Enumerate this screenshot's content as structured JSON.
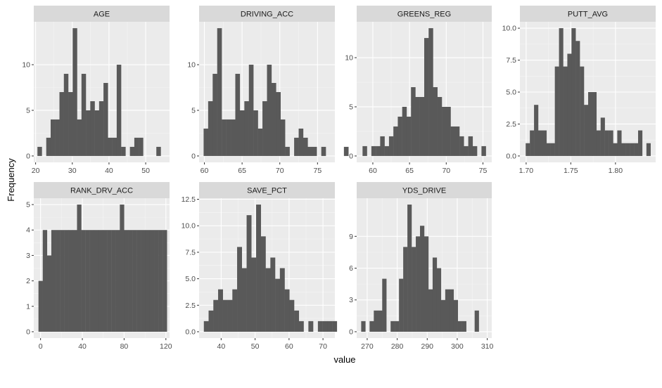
{
  "chart_data": {
    "type": "histogram",
    "xlabel": "value",
    "ylabel": "Frequency",
    "colors": {
      "bar": "#595959",
      "panel": "#ebebeb",
      "strip": "#d9d9d9",
      "grid_major": "#ffffff",
      "text": "#4d4d4d"
    },
    "facets": [
      {
        "name": "AGE",
        "xlim": [
          19.5,
          56.5
        ],
        "ylim": [
          -0.7,
          14.7
        ],
        "xticks": [
          20,
          30,
          40,
          50
        ],
        "xtick_labels": [
          "20",
          "30",
          "40",
          "50"
        ],
        "yticks": [
          0,
          5,
          10
        ],
        "ytick_labels": [
          "0",
          "5",
          "10"
        ],
        "bin_start": 20.5,
        "bin_width": 1.2,
        "counts": [
          1,
          0,
          2,
          4,
          4,
          7,
          9,
          7,
          14,
          4,
          9,
          5,
          6,
          5,
          6,
          8,
          2,
          2,
          10,
          1,
          0,
          1,
          2,
          2,
          0,
          0,
          0,
          1
        ]
      },
      {
        "name": "DRIVING_ACC",
        "xlim": [
          59.3,
          77.3
        ],
        "ylim": [
          -0.7,
          14.7
        ],
        "xticks": [
          60,
          65,
          70,
          75
        ],
        "xtick_labels": [
          "60",
          "65",
          "70",
          "75"
        ],
        "yticks": [
          0,
          5,
          10
        ],
        "ytick_labels": [
          "0",
          "5",
          "10"
        ],
        "bin_start": 59.9,
        "bin_width": 0.6,
        "counts": [
          3,
          6,
          9,
          14,
          4,
          4,
          4,
          9,
          5,
          6,
          10,
          5,
          3,
          6,
          10,
          8,
          7,
          4,
          1,
          0,
          2,
          3,
          2,
          1,
          1,
          0,
          1,
          0,
          0,
          0,
          0,
          1
        ]
      },
      {
        "name": "GREENS_REG",
        "xlim": [
          57.8,
          76.2
        ],
        "ylim": [
          -0.65,
          13.65
        ],
        "xticks": [
          60,
          65,
          70,
          75
        ],
        "xtick_labels": [
          "60",
          "65",
          "70",
          "75"
        ],
        "yticks": [
          0,
          5,
          10
        ],
        "ytick_labels": [
          "0",
          "5",
          "10"
        ],
        "bin_start": 58.6,
        "bin_width": 0.6,
        "counts": [
          1,
          0,
          1,
          1,
          2,
          1,
          2,
          3,
          4,
          5,
          4,
          7,
          6,
          6,
          12,
          13,
          7,
          6,
          5,
          5,
          3,
          3,
          2,
          1,
          2,
          1,
          0,
          1
        ]
      },
      {
        "name": "PUTT_AVG",
        "xlim": [
          1.693,
          1.845
        ],
        "ylim": [
          -0.5,
          10.5
        ],
        "xticks": [
          1.7,
          1.75,
          1.8
        ],
        "xtick_labels": [
          "1.70",
          "1.75",
          "1.80"
        ],
        "yticks": [
          0,
          2.5,
          5,
          7.5,
          10
        ],
        "ytick_labels": [
          "0.0",
          "2.5",
          "5.0",
          "7.5",
          "10.0"
        ],
        "bin_start": 1.6995,
        "bin_width": 0.00466,
        "counts": [
          1,
          2,
          4,
          2,
          2,
          1,
          1,
          7,
          10,
          7,
          8,
          10,
          9,
          7,
          4,
          5,
          5,
          2,
          3,
          2,
          2,
          1,
          2,
          1,
          1,
          1,
          1,
          2,
          0,
          1
        ]
      },
      {
        "name": "RANK_DRV_ACC",
        "xlim": [
          -6.5,
          123.5
        ],
        "ylim": [
          -0.25,
          5.25
        ],
        "xticks": [
          0,
          40,
          80,
          120
        ],
        "xtick_labels": [
          "0",
          "40",
          "80",
          "120"
        ],
        "yticks": [
          0,
          1,
          2,
          3,
          4,
          5
        ],
        "ytick_labels": [
          "0",
          "1",
          "2",
          "3",
          "4",
          "5"
        ],
        "bin_start": -2,
        "bin_width": 4.1,
        "counts": [
          2,
          4,
          3,
          4,
          4,
          4,
          4,
          4,
          4,
          5,
          4,
          4,
          4,
          4,
          4,
          4,
          4,
          4,
          4,
          5,
          4,
          4,
          4,
          4,
          4,
          4,
          4,
          4,
          4,
          4
        ]
      },
      {
        "name": "SAVE_PCT",
        "xlim": [
          33.5,
          73.5
        ],
        "ylim": [
          -0.6,
          12.6
        ],
        "xticks": [
          40,
          50,
          60,
          70
        ],
        "xtick_labels": [
          "40",
          "50",
          "60",
          "70"
        ],
        "yticks": [
          0,
          2.5,
          5,
          7.5,
          10,
          12.5
        ],
        "ytick_labels": [
          "0.0",
          "2.5",
          "5.0",
          "7.5",
          "10.0",
          "12.5"
        ],
        "bin_start": 34.9,
        "bin_width": 1.4,
        "counts": [
          1,
          2,
          3,
          4,
          3,
          3,
          4,
          8,
          6,
          11,
          7,
          12,
          9,
          6,
          7,
          5,
          6,
          4,
          3,
          2,
          1,
          0,
          1,
          0,
          1,
          1,
          1,
          1
        ]
      },
      {
        "name": "YDS_DRIVE",
        "xlim": [
          266.5,
          311.5
        ],
        "ylim": [
          -0.6,
          12.6
        ],
        "xticks": [
          270,
          280,
          290,
          300,
          310
        ],
        "xtick_labels": [
          "270",
          "280",
          "290",
          "300",
          "310"
        ],
        "yticks": [
          0,
          3,
          6,
          9
        ],
        "ytick_labels": [
          "0",
          "3",
          "6",
          "9"
        ],
        "bin_start": 268,
        "bin_width": 1.4,
        "counts": [
          1,
          0,
          1,
          2,
          2,
          5,
          0,
          1,
          1,
          5,
          8,
          12,
          8,
          9,
          10,
          9,
          4,
          7,
          6,
          3,
          4,
          4,
          3,
          1,
          1,
          0,
          0,
          2
        ]
      }
    ]
  }
}
